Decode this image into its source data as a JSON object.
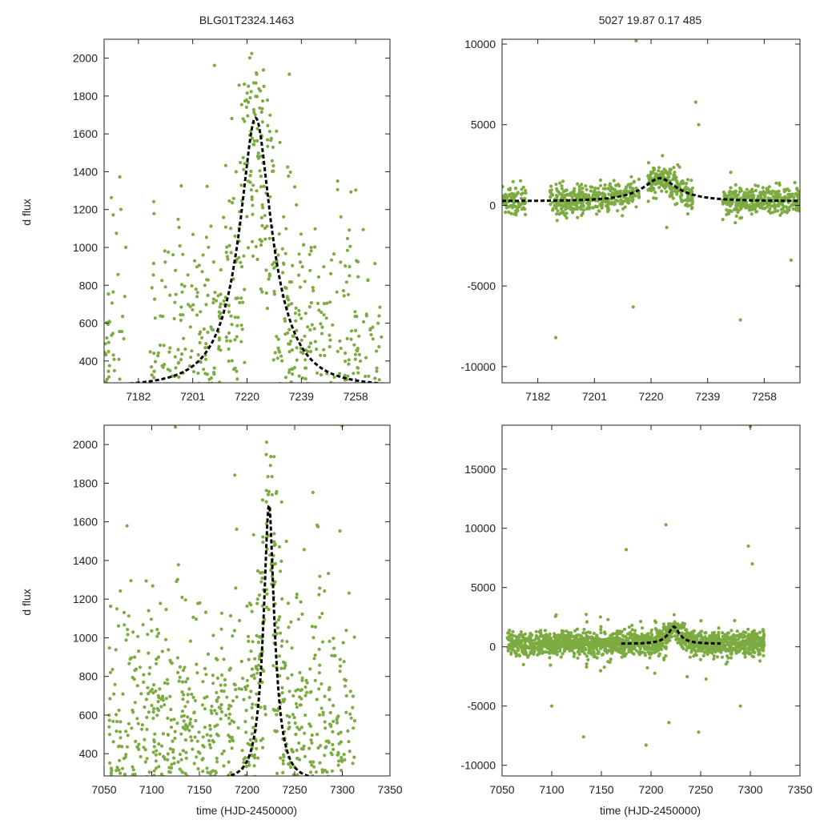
{
  "figure": {
    "left_title": "BLG01T2324.1463",
    "right_title": "5027   19.87   0.17   485",
    "ylabel": "d flux",
    "xlabel": "time (HJD-2450000)"
  },
  "colors": {
    "points": "#7cab42",
    "model": "#000000",
    "axes": "#222222",
    "background": "#ffffff"
  },
  "chart_data": [
    {
      "id": "top-left",
      "type": "scatter",
      "title": "BLG01T2324.1463",
      "ylabel": "d flux",
      "xlabel": "",
      "xlim": [
        7170,
        7270
      ],
      "ylim": [
        285,
        2100
      ],
      "xticks": [
        7182,
        7201,
        7220,
        7239,
        7258
      ],
      "yticks": [
        400,
        600,
        800,
        1000,
        1200,
        1400,
        1600,
        1800,
        2000
      ],
      "model": {
        "t0": 7223,
        "base": 262,
        "peak": 1685,
        "width": 6.3
      },
      "points": {
        "count": 900,
        "segments": [
          [
            7170,
            7178
          ],
          [
            7186,
            7267
          ]
        ],
        "sigma": 380
      }
    },
    {
      "id": "top-right",
      "type": "scatter",
      "title": "5027   19.87   0.17   485",
      "ylabel": "",
      "xlabel": "",
      "xlim": [
        7170,
        7270
      ],
      "ylim": [
        -11000,
        10300
      ],
      "xticks": [
        7182,
        7201,
        7220,
        7239,
        7258
      ],
      "yticks": [
        -10000,
        -5000,
        0,
        5000,
        10000
      ],
      "model": {
        "t0": 7223,
        "base": 262,
        "peak": 1685,
        "width": 6.3
      },
      "points": {
        "count": 1100,
        "segments": [
          [
            7170,
            7178
          ],
          [
            7186,
            7216
          ],
          [
            7219,
            7234
          ],
          [
            7244,
            7270
          ]
        ],
        "sigma": 420
      },
      "outliers": [
        [
          7188,
          -8200
        ],
        [
          7214,
          -6300
        ],
        [
          7235,
          6400
        ],
        [
          7236,
          5000
        ],
        [
          7250,
          -7100
        ],
        [
          7267,
          -3400
        ],
        [
          7270,
          -5000
        ],
        [
          7215,
          10200
        ]
      ]
    },
    {
      "id": "bottom-left",
      "type": "scatter",
      "title": "",
      "ylabel": "d flux",
      "xlabel": "time (HJD-2450000)",
      "xlim": [
        7050,
        7350
      ],
      "ylim": [
        285,
        2100
      ],
      "xticks": [
        7050,
        7100,
        7150,
        7200,
        7250,
        7300,
        7350
      ],
      "yticks": [
        400,
        600,
        800,
        1000,
        1200,
        1400,
        1600,
        1800,
        2000
      ],
      "model": {
        "t0": 7223,
        "base": 262,
        "peak": 1685,
        "width": 6.3,
        "range": [
          7170,
          7270
        ]
      },
      "points": {
        "count": 1500,
        "segments": [
          [
            7055,
            7314
          ]
        ],
        "sigma": 420
      }
    },
    {
      "id": "bottom-right",
      "type": "scatter",
      "title": "",
      "ylabel": "",
      "xlabel": "time (HJD-2450000)",
      "xlim": [
        7050,
        7350
      ],
      "ylim": [
        -10900,
        18700
      ],
      "xticks": [
        7050,
        7100,
        7150,
        7200,
        7250,
        7300,
        7350
      ],
      "yticks": [
        -10000,
        -5000,
        0,
        5000,
        10000,
        15000
      ],
      "model": {
        "t0": 7223,
        "base": 262,
        "peak": 1685,
        "width": 6.3,
        "range": [
          7170,
          7270
        ]
      },
      "points": {
        "count": 1800,
        "segments": [
          [
            7055,
            7314
          ]
        ],
        "sigma": 480
      },
      "outliers": [
        [
          7100,
          -5000
        ],
        [
          7132,
          -7600
        ],
        [
          7175,
          8200
        ],
        [
          7195,
          -8300
        ],
        [
          7215,
          10300
        ],
        [
          7218,
          -6400
        ],
        [
          7248,
          -7200
        ],
        [
          7290,
          -5000
        ],
        [
          7298,
          8500
        ],
        [
          7302,
          7000
        ],
        [
          7300,
          18600
        ]
      ]
    }
  ]
}
